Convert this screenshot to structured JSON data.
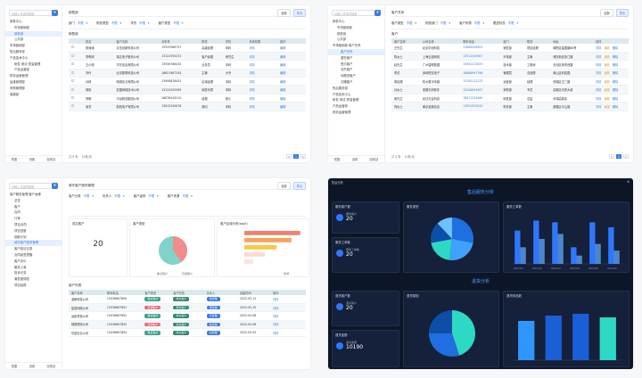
{
  "common": {
    "search_placeholder": "请输入关键词搜索",
    "footer": [
      "视图",
      "设置",
      "回收站"
    ],
    "pager_total": "共 8 条",
    "pager_size": "10条/页",
    "pager_pages": [
      "<",
      "1",
      ">"
    ]
  },
  "p1": {
    "title": "销售部",
    "btn_all": "全部",
    "btn_export": "导出",
    "tree": [
      "销售中心",
      "市场营销部",
      "销售部",
      "公共部",
      "市场营销部",
      "售后服务部",
      "产品技术中心",
      "研发·测试·质量管理",
      "产品运营部",
      "财务运营管理",
      "运维管理部",
      "采购管理部",
      "客服部"
    ],
    "filters": [
      {
        "label": "部门",
        "value": "不限"
      },
      {
        "label": "职务类型",
        "value": "不限"
      },
      {
        "label": "学历",
        "value": "不限"
      },
      {
        "label": "客户类型",
        "value": "不限"
      }
    ],
    "section": "销售部",
    "headers": [
      "",
      "姓名",
      "客户名称",
      "手机号",
      "职务",
      "学历",
      "系统权限",
      "操作"
    ],
    "rows": [
      [
        "张涛涛",
        "青岛创新科技公司",
        "15325566757",
        "高级经理",
        "本科",
        "详情",
        "编辑"
      ],
      [
        "李明明",
        "瑞达电子股份公司",
        "13122355231",
        "客户经理",
        "研究生",
        "详情",
        "编辑"
      ],
      [
        "王小明",
        "华东信息有限公司",
        "15556786432",
        "业务员",
        "本科",
        "详情",
        "编辑"
      ],
      [
        "刘丹",
        "北京数联科技公司",
        "18621987345",
        "主管",
        "大专",
        "详情",
        "编辑"
      ],
      [
        "孙林",
        "明德实业有限公司",
        "13908876452",
        "区域经理",
        "本科",
        "详情",
        "编辑"
      ],
      [
        "周晓",
        "宏图网络技术公司",
        "15122093365",
        "销售代表",
        "本科",
        "详情",
        "编辑"
      ],
      [
        "郑明",
        "中远物流集团公司",
        "18876543210",
        "经理",
        "硕士",
        "详情",
        "编辑"
      ],
      [
        "吴芳",
        "新阳电子有限公司",
        "13612345678",
        "顾问",
        "本科",
        "详情",
        "编辑"
      ]
    ]
  },
  "p2": {
    "title": "客户关系",
    "btn_all": "全部",
    "btn_export": "导出",
    "tree": [
      "销售中心",
      "市场营销部",
      "销售部",
      "公共部",
      "市场营销部·客户关系",
      "客户关系",
      "潜在客户",
      "签约客户",
      "流失客户",
      "待跟进客户",
      "沉睡客户",
      "售后服务部",
      "产品技术中心",
      "研发·测试·质量管理",
      "产品运营部",
      "财务运营管理"
    ],
    "filters": [
      {
        "label": "客户类型",
        "value": "不限"
      },
      {
        "label": "所属部门",
        "value": "不限"
      },
      {
        "label": "客户来源",
        "value": "不限"
      },
      {
        "label": "跟进状态",
        "value": "不限"
      }
    ],
    "section": "客户",
    "headers": [
      "客户名称",
      "公司名称",
      "联系电话",
      "部门",
      "职务",
      "地址",
      "操作"
    ],
    "rows": [
      [
        "王先生",
        "北京华创科技",
        "13866558923",
        "销售部",
        "项目经理",
        "朝阳区建国路88号",
        "详情",
        "编辑",
        "删除"
      ],
      [
        "陈女士",
        "上海云锐网络",
        "13512340987",
        "市场部",
        "主管",
        "浦东新区张江路",
        "详情",
        "编辑",
        "删除"
      ],
      [
        "赵先生",
        "广州智联数据",
        "15902215633",
        "技术部",
        "工程师",
        "天河区体育西路",
        "详情",
        "编辑",
        "删除"
      ],
      [
        "李总",
        "深圳恒信电子",
        "18688997766",
        "管理层",
        "总经理",
        "南山区科技园",
        "详情",
        "编辑",
        "删除"
      ],
      [
        "周经理",
        "杭州数字传媒",
        "13700112233",
        "运营部",
        "经理",
        "西湖区文三路",
        "详情",
        "编辑",
        "删除"
      ],
      [
        "孙女士",
        "成都天府软件",
        "15208834567",
        "采购部",
        "专员",
        "高新区天府大道",
        "详情",
        "编辑",
        "删除"
      ],
      [
        "吴先生",
        "武汉光谷科技",
        "18971234560",
        "研发部",
        "总监",
        "东湖高新区",
        "详情",
        "编辑",
        "删除"
      ],
      [
        "郑女士",
        "南京金陵信息",
        "13951876543",
        "财务部",
        "主管",
        "鼓楼区中山路",
        "详情",
        "编辑",
        "删除"
      ]
    ]
  },
  "p3": {
    "title": "城东客户服务管理",
    "btn_all": "全部",
    "btn_export": "导出",
    "tree": [
      "客户服务管理·客户画像",
      "总览",
      "客户",
      "合同",
      "订单",
      "项目合同",
      "项目进度",
      "回款计划",
      "城东客户服务管理",
      "客户回访记录",
      "合同续签提醒",
      "客户评价",
      "服务工单",
      "投诉记录",
      "满意度调查",
      "项目结算"
    ],
    "filters": [
      {
        "label": "客户分类",
        "value": "不限"
      },
      {
        "label": "负责人",
        "value": "不限"
      },
      {
        "label": "客户级别",
        "value": "不限"
      },
      {
        "label": "客户来源",
        "value": "不限"
      }
    ],
    "kpi_title": "成交客户",
    "kpi_value": "20",
    "pie_title": "客户类型",
    "pie_labels": [
      "重点客户",
      "普通客户"
    ],
    "bar_title": "客户区域分布(top5)",
    "bar_legend": "区域",
    "list_title": "客户列表",
    "headers": [
      "客户名称",
      "联系电话",
      "客户类型",
      "客户状态",
      "负责人",
      "创建时间",
      "操作"
    ],
    "rows": [
      [
        "蓝鲸科技公司",
        "15036667890",
        "重点客户",
        "成交客户",
        "张经理",
        "2022-05-12",
        "详情"
      ],
      [
        "星辰网络公司",
        "15036667891",
        "普通客户",
        "意向客户",
        "李经理",
        "2022-05-10",
        "详情"
      ],
      [
        "远航贸易公司",
        "15036667892",
        "重点客户",
        "成交客户",
        "王经理",
        "2022-05-08",
        "详情"
      ],
      [
        "锦程物流公司",
        "15036667893",
        "普通客户",
        "潜在客户",
        "赵经理",
        "2022-05-06",
        "详情"
      ],
      [
        "华盛实业公司",
        "15036667894",
        "重点客户",
        "成交客户",
        "刘经理",
        "2022-05-02",
        "详情"
      ]
    ]
  },
  "p4": {
    "title": "售后服务分析",
    "title2": "退货分析",
    "topbar": "售后分析",
    "stat1_title": "服务客户数",
    "stat1_label": "服务客户",
    "stat1_value": "20",
    "stat2_title": "服务工单数",
    "stat2_label": "服务工单数",
    "stat2_value": "20",
    "stat3_title": "退货客户数",
    "stat3_label": "退货客户",
    "stat3_value": "20",
    "stat4_title": "退货金额",
    "stat4_label": "退货金额",
    "stat4_value": "10190",
    "pie1_title": "服务类型",
    "bar1_title": "服务工单数",
    "pie2_title": "退货原因",
    "bar2_title": "退货商品数"
  },
  "chart_data": [
    {
      "type": "pie",
      "title": "客户类型",
      "categories": [
        "重点客户",
        "普通客户"
      ],
      "values": [
        40,
        60
      ],
      "colors": [
        "#f28b8b",
        "#7fd3c8"
      ]
    },
    {
      "type": "bar",
      "title": "客户区域分布(top5)",
      "categories": [
        "A",
        "B",
        "C",
        "D",
        "E"
      ],
      "values": [
        95,
        80,
        55,
        35,
        15
      ],
      "colors": [
        "#f08070",
        "#f5a25d",
        "#f7c948",
        "#ffd6d0",
        "#fbe3e0"
      ]
    },
    {
      "type": "pie",
      "title": "服务类型",
      "categories": [
        "安装服务",
        "维修服务",
        "咨询服务",
        "投诉服务",
        "退换服务"
      ],
      "values": [
        28,
        24,
        20,
        16,
        12
      ],
      "colors": [
        "#1f6fe0",
        "#3fa2ff",
        "#2dd9c4",
        "#0c4ea8",
        "#6ec1ff"
      ]
    },
    {
      "type": "bar",
      "title": "服务工单数",
      "categories": [
        "2023-01",
        "2023-02",
        "2023-03",
        "2023-04",
        "2023-05",
        "2023-06"
      ],
      "series": [
        {
          "values": [
            20,
            26,
            25,
            10,
            25,
            22
          ]
        },
        {
          "values": [
            10,
            15,
            18,
            5,
            12,
            8
          ]
        }
      ],
      "colors": [
        "#2f77ff",
        "#4d87c8"
      ]
    },
    {
      "type": "pie",
      "title": "退货原因",
      "categories": [
        "质量问题",
        "尺寸不符",
        "其他"
      ],
      "values": [
        45,
        30,
        25
      ],
      "colors": [
        "#2dd9c4",
        "#1f6fe0",
        "#0c4ea8"
      ]
    },
    {
      "type": "bar",
      "title": "退货商品数",
      "categories": [
        "A",
        "B",
        "C",
        "D"
      ],
      "values": [
        22,
        25,
        26,
        24
      ],
      "colors": [
        "#2f96ff",
        "#1a5fd6",
        "#1a5fd6",
        "#2dd9c4"
      ]
    }
  ]
}
